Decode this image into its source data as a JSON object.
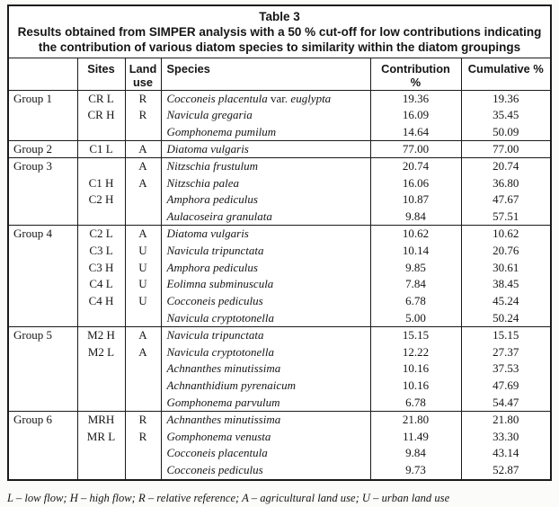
{
  "colors": {
    "border": "#1a1a1a",
    "text": "#151515",
    "background": "#ffffff"
  },
  "table": {
    "label": "Table 3",
    "title": "Results obtained from SIMPER analysis with a 50 % cut-off for low contributions indicating the contribution of various diatom species to similarity within the diatom groupings",
    "headers": {
      "group": "",
      "sites": "Sites",
      "land_use": "Land use",
      "species": "Species",
      "contribution": "Contribution %",
      "cumulative": "Cumulative %"
    },
    "groups": [
      {
        "label": "Group 1",
        "rows": [
          {
            "site": "CR L",
            "land_use": "R",
            "species": "Cocconeis placentula var. euglypta",
            "contribution": "19.36",
            "cumulative": "19.36"
          },
          {
            "site": "CR H",
            "land_use": "R",
            "species": "Navicula gregaria",
            "contribution": "16.09",
            "cumulative": "35.45"
          },
          {
            "site": "",
            "land_use": "",
            "species": "Gomphonema pumilum",
            "contribution": "14.64",
            "cumulative": "50.09"
          }
        ]
      },
      {
        "label": "Group 2",
        "rows": [
          {
            "site": "C1 L",
            "land_use": "A",
            "species": "Diatoma vulgaris",
            "contribution": "77.00",
            "cumulative": "77.00"
          }
        ]
      },
      {
        "label": "Group 3",
        "rows": [
          {
            "site": "",
            "land_use": "A",
            "species": "Nitzschia frustulum",
            "contribution": "20.74",
            "cumulative": "20.74"
          },
          {
            "site": "C1 H",
            "land_use": "A",
            "species": "Nitzschia palea",
            "contribution": "16.06",
            "cumulative": "36.80"
          },
          {
            "site": "C2 H",
            "land_use": "",
            "species": "Amphora pediculus",
            "contribution": "10.87",
            "cumulative": "47.67"
          },
          {
            "site": "",
            "land_use": "",
            "species": "Aulacoseira granulata",
            "contribution": "9.84",
            "cumulative": "57.51"
          }
        ]
      },
      {
        "label": "Group 4",
        "rows": [
          {
            "site": "C2 L",
            "land_use": "A",
            "species": "Diatoma vulgaris",
            "contribution": "10.62",
            "cumulative": "10.62"
          },
          {
            "site": "C3 L",
            "land_use": "U",
            "species": "Navicula tripunctata",
            "contribution": "10.14",
            "cumulative": "20.76"
          },
          {
            "site": "C3 H",
            "land_use": "U",
            "species": "Amphora pediculus",
            "contribution": "9.85",
            "cumulative": "30.61"
          },
          {
            "site": "C4 L",
            "land_use": "U",
            "species": "Eolimna subminuscula",
            "contribution": "7.84",
            "cumulative": "38.45"
          },
          {
            "site": "C4 H",
            "land_use": "U",
            "species": "Cocconeis pediculus",
            "contribution": "6.78",
            "cumulative": "45.24"
          },
          {
            "site": "",
            "land_use": "",
            "species": "Navicula cryptotonella",
            "contribution": "5.00",
            "cumulative": "50.24"
          }
        ]
      },
      {
        "label": "Group 5",
        "rows": [
          {
            "site": "M2 H",
            "land_use": "A",
            "species": "Navicula tripunctata",
            "contribution": "15.15",
            "cumulative": "15.15"
          },
          {
            "site": "M2 L",
            "land_use": "A",
            "species": "Navicula cryptotonella",
            "contribution": "12.22",
            "cumulative": "27.37"
          },
          {
            "site": "",
            "land_use": "",
            "species": "Achnanthes minutissima",
            "contribution": "10.16",
            "cumulative": "37.53"
          },
          {
            "site": "",
            "land_use": "",
            "species": "Achnanthidium pyrenaicum",
            "contribution": "10.16",
            "cumulative": "47.69"
          },
          {
            "site": "",
            "land_use": "",
            "species": "Gomphonema parvulum",
            "contribution": "6.78",
            "cumulative": "54.47"
          }
        ]
      },
      {
        "label": "Group 6",
        "rows": [
          {
            "site": "MRH",
            "land_use": "R",
            "species": "Achnanthes minutissima",
            "contribution": "21.80",
            "cumulative": "21.80"
          },
          {
            "site": "MR L",
            "land_use": "R",
            "species": "Gomphonema venusta",
            "contribution": "11.49",
            "cumulative": "33.30"
          },
          {
            "site": "",
            "land_use": "",
            "species": "Cocconeis placentula",
            "contribution": "9.84",
            "cumulative": "43.14"
          },
          {
            "site": "",
            "land_use": "",
            "species": "Cocconeis pediculus",
            "contribution": "9.73",
            "cumulative": "52.87"
          }
        ]
      }
    ]
  },
  "footnote": "L – low flow; H – high flow; R – relative reference; A – agricultural land use; U – urban land use"
}
